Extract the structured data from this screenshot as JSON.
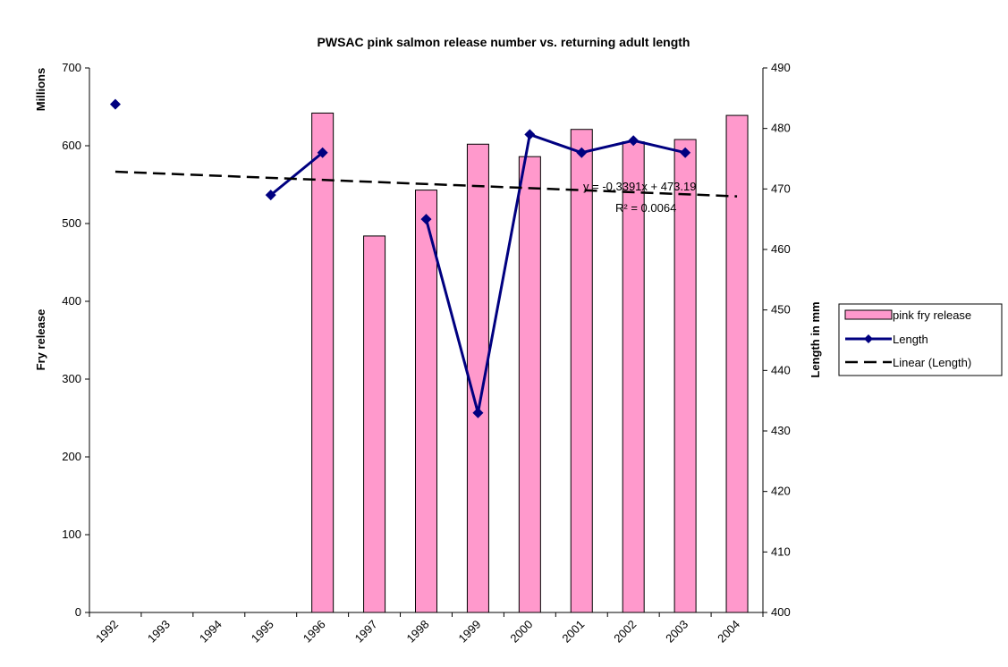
{
  "chart_data": {
    "type": "bar-line",
    "title": "PWSAC pink salmon release number vs. returning adult length",
    "categories": [
      "1992",
      "1993",
      "1994",
      "1995",
      "1996",
      "1997",
      "1998",
      "1999",
      "2000",
      "2001",
      "2002",
      "2003",
      "2004"
    ],
    "series": [
      {
        "name": "pink fry release",
        "color": "#ff99cc",
        "type": "bar",
        "axis": "y",
        "values": [
          null,
          null,
          null,
          null,
          642,
          484,
          543,
          602,
          586,
          621,
          605,
          608,
          639
        ]
      },
      {
        "name": "Length",
        "color": "#000080",
        "type": "line",
        "axis": "y2",
        "values": [
          484,
          null,
          null,
          469,
          476,
          null,
          465,
          433,
          479,
          476,
          478,
          476,
          null
        ]
      }
    ],
    "trendline": {
      "name": "Linear (Length)",
      "color": "#000000",
      "slope": -0.3391,
      "intercept": 473.19,
      "label": "y = -0.3391x + 473.19",
      "r2_label": "R² = 0.0064"
    },
    "y_unit_label": "Millions",
    "y_label": "Fry release",
    "y2_label": "Length in mm",
    "ylim": [
      0,
      700
    ],
    "yticks": [
      0,
      100,
      200,
      300,
      400,
      500,
      600,
      700
    ],
    "y2lim": [
      400,
      490
    ],
    "y2ticks": [
      400,
      410,
      420,
      430,
      440,
      450,
      460,
      470,
      480,
      490
    ],
    "legend": "right"
  }
}
